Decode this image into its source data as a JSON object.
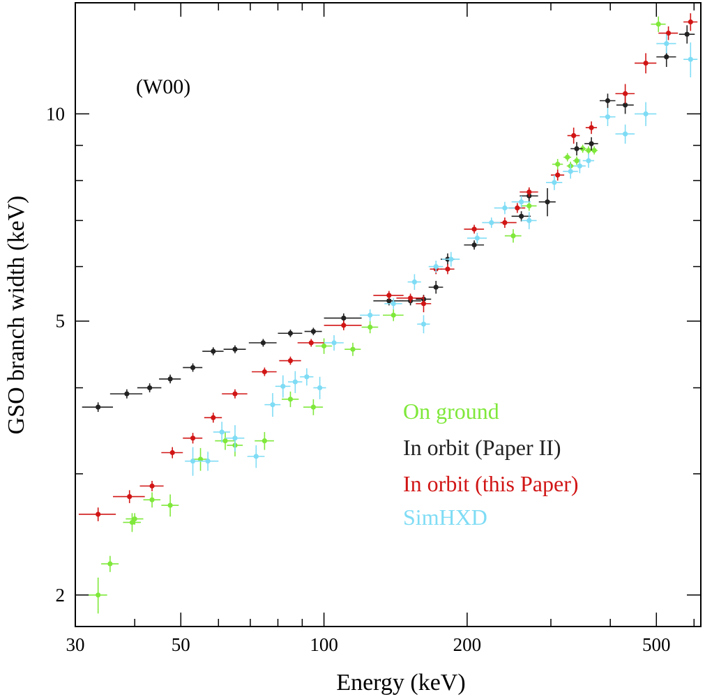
{
  "chart_data": {
    "type": "scatter",
    "xlabel": "Energy (keV)",
    "ylabel": "GSO branch width (keV)",
    "annotation": "(W00)",
    "xscale": "log",
    "yscale": "log",
    "xlim": [
      30,
      620
    ],
    "ylim": [
      1.8,
      14.5
    ],
    "x_ticklabels": [
      "30",
      "50",
      "100",
      "200",
      "500"
    ],
    "y_ticklabels": [
      "2",
      "5",
      "10"
    ],
    "grid": false,
    "legend_position": "lower-right",
    "series": [
      {
        "name": "On ground",
        "color": "#7fe83a",
        "points": [
          {
            "x": 33.5,
            "y": 2.0,
            "xerr": 1.5,
            "yerr": 0.12
          },
          {
            "x": 35.5,
            "y": 2.22,
            "xerr": 1.5,
            "yerr": 0.06
          },
          {
            "x": 39.5,
            "y": 2.55,
            "xerr": 1.7,
            "yerr": 0.08
          },
          {
            "x": 40.0,
            "y": 2.58,
            "xerr": 1.7,
            "yerr": 0.05
          },
          {
            "x": 43.5,
            "y": 2.75,
            "xerr": 1.8,
            "yerr": 0.07
          },
          {
            "x": 47.5,
            "y": 2.7,
            "xerr": 2.0,
            "yerr": 0.1
          },
          {
            "x": 55.0,
            "y": 3.15,
            "xerr": 2.3,
            "yerr": 0.12
          },
          {
            "x": 62.0,
            "y": 3.35,
            "xerr": 3.0,
            "yerr": 0.1
          },
          {
            "x": 65.0,
            "y": 3.3,
            "xerr": 2.5,
            "yerr": 0.12
          },
          {
            "x": 75.0,
            "y": 3.35,
            "xerr": 3.5,
            "yerr": 0.1
          },
          {
            "x": 85.0,
            "y": 3.85,
            "xerr": 3.5,
            "yerr": 0.1
          },
          {
            "x": 95.0,
            "y": 3.75,
            "xerr": 4.5,
            "yerr": 0.1
          },
          {
            "x": 100.0,
            "y": 4.6,
            "xerr": 4.0,
            "yerr": 0.12
          },
          {
            "x": 115.0,
            "y": 4.55,
            "xerr": 4.5,
            "yerr": 0.1
          },
          {
            "x": 125.0,
            "y": 4.9,
            "xerr": 5.0,
            "yerr": 0.1
          },
          {
            "x": 140.0,
            "y": 5.1,
            "xerr": 7.0,
            "yerr": 0.1
          },
          {
            "x": 250.0,
            "y": 6.65,
            "xerr": 10.0,
            "yerr": 0.15
          },
          {
            "x": 270.0,
            "y": 7.35,
            "xerr": 10.0,
            "yerr": 0.12
          },
          {
            "x": 310.0,
            "y": 8.45,
            "xerr": 8.0,
            "yerr": 0.15
          },
          {
            "x": 325.0,
            "y": 8.65,
            "xerr": 6.0,
            "yerr": 0.12
          },
          {
            "x": 330.0,
            "y": 8.4,
            "xerr": 6.0,
            "yerr": 0.12
          },
          {
            "x": 340.0,
            "y": 8.55,
            "xerr": 6.0,
            "yerr": 0.12
          },
          {
            "x": 350.0,
            "y": 8.9,
            "xerr": 6.0,
            "yerr": 0.12
          },
          {
            "x": 360.0,
            "y": 8.85,
            "xerr": 6.0,
            "yerr": 0.12
          },
          {
            "x": 370.0,
            "y": 8.85,
            "xerr": 6.0,
            "yerr": 0.12
          },
          {
            "x": 505.0,
            "y": 13.5,
            "xerr": 18.0,
            "yerr": 0.35
          }
        ]
      },
      {
        "name": "In orbit (Paper II)",
        "color": "#222222",
        "points": [
          {
            "x": 33.5,
            "y": 3.75,
            "xerr": 2.5,
            "yerr": 0.06
          },
          {
            "x": 38.5,
            "y": 3.92,
            "xerr": 3.0,
            "yerr": 0.06
          },
          {
            "x": 43.0,
            "y": 4.0,
            "xerr": 2.5,
            "yerr": 0.06
          },
          {
            "x": 47.5,
            "y": 4.12,
            "xerr": 2.5,
            "yerr": 0.06
          },
          {
            "x": 53.0,
            "y": 4.28,
            "xerr": 2.5,
            "yerr": 0.06
          },
          {
            "x": 58.5,
            "y": 4.52,
            "xerr": 3.0,
            "yerr": 0.06
          },
          {
            "x": 65.0,
            "y": 4.55,
            "xerr": 3.5,
            "yerr": 0.06
          },
          {
            "x": 74.5,
            "y": 4.65,
            "xerr": 5.0,
            "yerr": 0.06
          },
          {
            "x": 85.0,
            "y": 4.8,
            "xerr": 5.0,
            "yerr": 0.06
          },
          {
            "x": 95.0,
            "y": 4.83,
            "xerr": 4.0,
            "yerr": 0.06
          },
          {
            "x": 110.0,
            "y": 5.05,
            "xerr": 10.0,
            "yerr": 0.08
          },
          {
            "x": 137.0,
            "y": 5.35,
            "xerr": 10.0,
            "yerr": 0.08
          },
          {
            "x": 152.0,
            "y": 5.35,
            "xerr": 8.0,
            "yerr": 0.08
          },
          {
            "x": 162.0,
            "y": 5.38,
            "xerr": 6.0,
            "yerr": 0.08
          },
          {
            "x": 172.0,
            "y": 5.6,
            "xerr": 6.0,
            "yerr": 0.12
          },
          {
            "x": 182.0,
            "y": 6.15,
            "xerr": 6.0,
            "yerr": 0.12
          },
          {
            "x": 207.0,
            "y": 6.45,
            "xerr": 10.0,
            "yerr": 0.1
          },
          {
            "x": 260.0,
            "y": 7.1,
            "xerr": 12.0,
            "yerr": 0.12
          },
          {
            "x": 270.0,
            "y": 7.6,
            "xerr": 12.0,
            "yerr": 0.15
          },
          {
            "x": 295.0,
            "y": 7.45,
            "xerr": 12.0,
            "yerr": 0.35
          },
          {
            "x": 340.0,
            "y": 8.9,
            "xerr": 10.0,
            "yerr": 0.2
          },
          {
            "x": 365.0,
            "y": 9.05,
            "xerr": 12.0,
            "yerr": 0.2
          },
          {
            "x": 395.0,
            "y": 10.45,
            "xerr": 15.0,
            "yerr": 0.25
          },
          {
            "x": 430.0,
            "y": 10.3,
            "xerr": 18.0,
            "yerr": 0.3
          },
          {
            "x": 525.0,
            "y": 12.1,
            "xerr": 25.0,
            "yerr": 0.4
          },
          {
            "x": 580.0,
            "y": 13.05,
            "xerr": 22.0,
            "yerr": 0.4
          }
        ]
      },
      {
        "name": "In orbit (this Paper)",
        "color": "#d11515",
        "points": [
          {
            "x": 33.5,
            "y": 2.62,
            "xerr": 3.0,
            "yerr": 0.06
          },
          {
            "x": 39.0,
            "y": 2.78,
            "xerr": 3.0,
            "yerr": 0.06
          },
          {
            "x": 43.5,
            "y": 2.88,
            "xerr": 2.5,
            "yerr": 0.05
          },
          {
            "x": 48.0,
            "y": 3.22,
            "xerr": 2.5,
            "yerr": 0.06
          },
          {
            "x": 53.0,
            "y": 3.38,
            "xerr": 2.5,
            "yerr": 0.06
          },
          {
            "x": 58.5,
            "y": 3.62,
            "xerr": 2.5,
            "yerr": 0.06
          },
          {
            "x": 65.0,
            "y": 3.92,
            "xerr": 4.0,
            "yerr": 0.06
          },
          {
            "x": 75.0,
            "y": 4.22,
            "xerr": 4.5,
            "yerr": 0.06
          },
          {
            "x": 85.0,
            "y": 4.38,
            "xerr": 4.5,
            "yerr": 0.06
          },
          {
            "x": 94.0,
            "y": 4.65,
            "xerr": 6.0,
            "yerr": 0.06
          },
          {
            "x": 110.0,
            "y": 4.93,
            "xerr": 10.0,
            "yerr": 0.08
          },
          {
            "x": 137.0,
            "y": 5.45,
            "xerr": 10.0,
            "yerr": 0.08
          },
          {
            "x": 152.0,
            "y": 5.4,
            "xerr": 10.0,
            "yerr": 0.08
          },
          {
            "x": 162.0,
            "y": 5.3,
            "xerr": 6.0,
            "yerr": 0.15
          },
          {
            "x": 172.0,
            "y": 5.95,
            "xerr": 5.0,
            "yerr": 0.1
          },
          {
            "x": 182.0,
            "y": 5.95,
            "xerr": 6.0,
            "yerr": 0.1
          },
          {
            "x": 207.0,
            "y": 6.8,
            "xerr": 10.0,
            "yerr": 0.1
          },
          {
            "x": 240.0,
            "y": 6.95,
            "xerr": 14.0,
            "yerr": 0.12
          },
          {
            "x": 255.0,
            "y": 7.3,
            "xerr": 10.0,
            "yerr": 0.12
          },
          {
            "x": 270.0,
            "y": 7.7,
            "xerr": 12.0,
            "yerr": 0.12
          },
          {
            "x": 310.0,
            "y": 8.15,
            "xerr": 10.0,
            "yerr": 0.15
          },
          {
            "x": 335.0,
            "y": 9.3,
            "xerr": 10.0,
            "yerr": 0.25
          },
          {
            "x": 365.0,
            "y": 9.55,
            "xerr": 10.0,
            "yerr": 0.2
          },
          {
            "x": 430.0,
            "y": 10.7,
            "xerr": 20.0,
            "yerr": 0.35
          },
          {
            "x": 475.0,
            "y": 11.85,
            "xerr": 25.0,
            "yerr": 0.4
          },
          {
            "x": 530.0,
            "y": 13.1,
            "xerr": 25.0,
            "yerr": 0.3
          },
          {
            "x": 590.0,
            "y": 13.6,
            "xerr": 20.0,
            "yerr": 0.4
          }
        ]
      },
      {
        "name": "SimHXD",
        "color": "#7fdcf5",
        "points": [
          {
            "x": 53.0,
            "y": 3.13,
            "xerr": 2.0,
            "yerr": 0.15
          },
          {
            "x": 57.0,
            "y": 3.13,
            "xerr": 3.0,
            "yerr": 0.1
          },
          {
            "x": 61.0,
            "y": 3.45,
            "xerr": 2.5,
            "yerr": 0.12
          },
          {
            "x": 65.0,
            "y": 3.38,
            "xerr": 3.0,
            "yerr": 0.15
          },
          {
            "x": 72.0,
            "y": 3.18,
            "xerr": 3.0,
            "yerr": 0.12
          },
          {
            "x": 78.0,
            "y": 3.78,
            "xerr": 3.0,
            "yerr": 0.15
          },
          {
            "x": 82.0,
            "y": 4.02,
            "xerr": 3.0,
            "yerr": 0.15
          },
          {
            "x": 87.0,
            "y": 4.08,
            "xerr": 3.0,
            "yerr": 0.15
          },
          {
            "x": 92.0,
            "y": 4.15,
            "xerr": 3.0,
            "yerr": 0.12
          },
          {
            "x": 98.0,
            "y": 4.0,
            "xerr": 3.0,
            "yerr": 0.15
          },
          {
            "x": 105.0,
            "y": 4.65,
            "xerr": 5.0,
            "yerr": 0.12
          },
          {
            "x": 125.0,
            "y": 5.1,
            "xerr": 6.0,
            "yerr": 0.1
          },
          {
            "x": 140.0,
            "y": 5.3,
            "xerr": 6.0,
            "yerr": 0.1
          },
          {
            "x": 155.0,
            "y": 5.7,
            "xerr": 5.0,
            "yerr": 0.15
          },
          {
            "x": 162.0,
            "y": 4.95,
            "xerr": 5.0,
            "yerr": 0.15
          },
          {
            "x": 172.0,
            "y": 6.0,
            "xerr": 6.0,
            "yerr": 0.12
          },
          {
            "x": 185.0,
            "y": 6.15,
            "xerr": 8.0,
            "yerr": 0.15
          },
          {
            "x": 210.0,
            "y": 6.6,
            "xerr": 10.0,
            "yerr": 0.12
          },
          {
            "x": 225.0,
            "y": 6.95,
            "xerr": 10.0,
            "yerr": 0.12
          },
          {
            "x": 240.0,
            "y": 7.3,
            "xerr": 12.0,
            "yerr": 0.15
          },
          {
            "x": 260.0,
            "y": 7.45,
            "xerr": 12.0,
            "yerr": 0.15
          },
          {
            "x": 270.0,
            "y": 7.0,
            "xerr": 10.0,
            "yerr": 0.2
          },
          {
            "x": 305.0,
            "y": 7.95,
            "xerr": 12.0,
            "yerr": 0.2
          },
          {
            "x": 330.0,
            "y": 8.25,
            "xerr": 12.0,
            "yerr": 0.2
          },
          {
            "x": 345.0,
            "y": 8.4,
            "xerr": 10.0,
            "yerr": 0.2
          },
          {
            "x": 360.0,
            "y": 8.55,
            "xerr": 10.0,
            "yerr": 0.2
          },
          {
            "x": 395.0,
            "y": 9.9,
            "xerr": 15.0,
            "yerr": 0.3
          },
          {
            "x": 430.0,
            "y": 9.35,
            "xerr": 20.0,
            "yerr": 0.3
          },
          {
            "x": 475.0,
            "y": 10.0,
            "xerr": 25.0,
            "yerr": 0.4
          },
          {
            "x": 525.0,
            "y": 12.65,
            "xerr": 25.0,
            "yerr": 0.4
          },
          {
            "x": 590.0,
            "y": 12.0,
            "xerr": 20.0,
            "yerr": 0.7
          }
        ]
      }
    ]
  }
}
